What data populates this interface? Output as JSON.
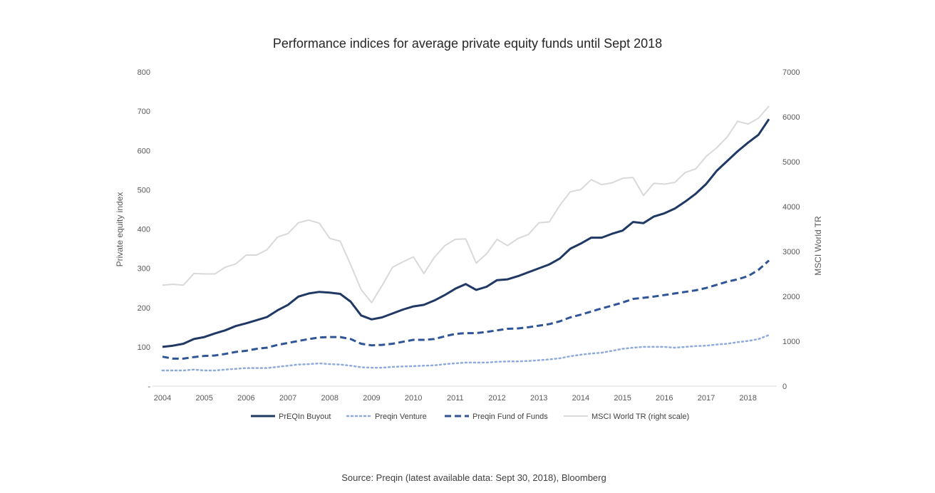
{
  "chart_data": {
    "type": "line",
    "title": "Performance indices for average private equity funds until Sept 2018",
    "source": "Source: Preqin (latest available data: Sept 30, 2018), Bloomberg",
    "ylabel": "Private equity index",
    "y2label": "MSCI World TR",
    "ylim": [
      0,
      800
    ],
    "y2lim": [
      0,
      7000
    ],
    "y_ticks": [
      "-",
      "100",
      "200",
      "300",
      "400",
      "500",
      "600",
      "700",
      "800"
    ],
    "y2_ticks": [
      "0",
      "1000",
      "2000",
      "3000",
      "4000",
      "5000",
      "6000",
      "7000"
    ],
    "x_ticks": [
      "2004",
      "2005",
      "2006",
      "2007",
      "2008",
      "2009",
      "2010",
      "2011",
      "2012",
      "2013",
      "2014",
      "2015",
      "2016",
      "2017",
      "2018"
    ],
    "x_start": 2004.0,
    "x_step": 0.25,
    "legend_position": "bottom",
    "series": [
      {
        "name": "PrEQIn Buyout",
        "axis": "left",
        "color": "#1f3864",
        "style": "solid",
        "values": [
          100,
          103,
          108,
          120,
          125,
          134,
          142,
          153,
          160,
          168,
          176,
          193,
          207,
          228,
          236,
          240,
          238,
          235,
          215,
          180,
          170,
          175,
          185,
          195,
          203,
          207,
          218,
          232,
          248,
          260,
          245,
          253,
          270,
          272,
          280,
          290,
          300,
          310,
          325,
          350,
          363,
          378,
          378,
          388,
          396,
          418,
          415,
          432,
          440,
          452,
          470,
          490,
          515,
          548,
          573,
          598,
          620,
          640,
          680
        ]
      },
      {
        "name": "Preqin Venture",
        "axis": "left",
        "color": "#8eaadb",
        "style": "dotted",
        "values": [
          40,
          40,
          40,
          42,
          40,
          40,
          42,
          44,
          46,
          46,
          46,
          49,
          52,
          55,
          56,
          58,
          56,
          55,
          52,
          48,
          47,
          47,
          49,
          50,
          51,
          52,
          53,
          56,
          58,
          60,
          60,
          60,
          62,
          63,
          63,
          64,
          66,
          68,
          71,
          76,
          80,
          83,
          85,
          90,
          95,
          98,
          100,
          100,
          100,
          98,
          100,
          102,
          103,
          106,
          108,
          112,
          115,
          120,
          130
        ]
      },
      {
        "name": "Preqin Fund of Funds",
        "axis": "left",
        "color": "#2f5597",
        "style": "dashed",
        "values": [
          75,
          70,
          70,
          74,
          77,
          78,
          82,
          87,
          90,
          95,
          98,
          105,
          110,
          115,
          120,
          124,
          125,
          125,
          120,
          108,
          104,
          105,
          108,
          113,
          118,
          118,
          120,
          127,
          133,
          135,
          135,
          138,
          142,
          146,
          147,
          150,
          154,
          158,
          165,
          175,
          182,
          190,
          198,
          205,
          213,
          222,
          225,
          228,
          232,
          236,
          240,
          244,
          250,
          258,
          266,
          272,
          280,
          296,
          320
        ]
      },
      {
        "name": "MSCI World TR (right scale)",
        "axis": "right",
        "color": "#d9d9d9",
        "style": "solid",
        "values": [
          2250,
          2270,
          2250,
          2510,
          2500,
          2500,
          2650,
          2720,
          2920,
          2920,
          3040,
          3320,
          3400,
          3640,
          3700,
          3630,
          3290,
          3230,
          2700,
          2150,
          1860,
          2240,
          2650,
          2770,
          2880,
          2510,
          2870,
          3130,
          3270,
          3280,
          2740,
          2950,
          3270,
          3130,
          3290,
          3380,
          3640,
          3660,
          4030,
          4330,
          4380,
          4600,
          4490,
          4530,
          4630,
          4650,
          4250,
          4520,
          4500,
          4540,
          4760,
          4840,
          5120,
          5310,
          5550,
          5900,
          5840,
          5970,
          6240
        ]
      }
    ]
  }
}
